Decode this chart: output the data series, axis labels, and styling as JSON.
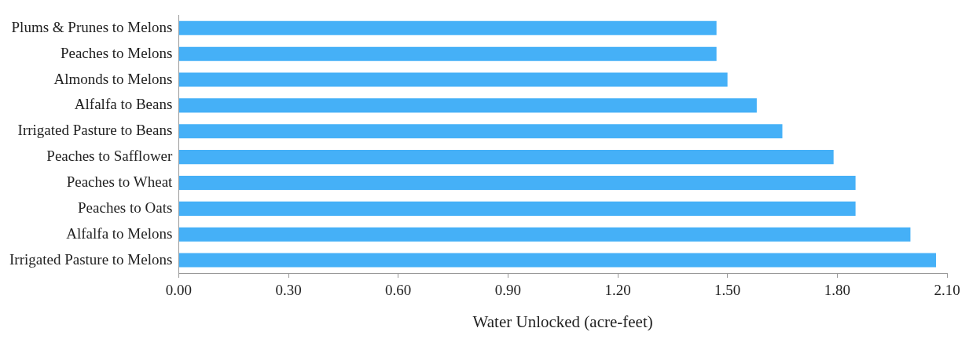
{
  "chart_data": {
    "type": "bar",
    "orientation": "horizontal",
    "xlabel": "Water Unlocked (acre-feet)",
    "categories": [
      "Plums & Prunes to Melons",
      "Peaches to Melons",
      "Almonds to Melons",
      "Alfalfa to Beans",
      "Irrigated Pasture to Beans",
      "Peaches to Safflower",
      "Peaches to Wheat",
      "Peaches to Oats",
      "Alfalfa to Melons",
      "Irrigated Pasture to Melons"
    ],
    "values": [
      1.47,
      1.47,
      1.5,
      1.58,
      1.65,
      1.79,
      1.85,
      1.85,
      2.0,
      2.07
    ],
    "color": "#45b0f7",
    "xlim": [
      0,
      2.1
    ],
    "xticks": [
      {
        "value": 0,
        "label": "0.00"
      },
      {
        "value": 0.3,
        "label": "0.30"
      },
      {
        "value": 0.6,
        "label": "0.60"
      },
      {
        "value": 0.9,
        "label": "0.90"
      },
      {
        "value": 1.2,
        "label": "1.20"
      },
      {
        "value": 1.5,
        "label": "1.50"
      },
      {
        "value": 1.8,
        "label": "1.80"
      },
      {
        "value": 2.1,
        "label": "2.10"
      }
    ],
    "grid": false,
    "legend": false
  }
}
